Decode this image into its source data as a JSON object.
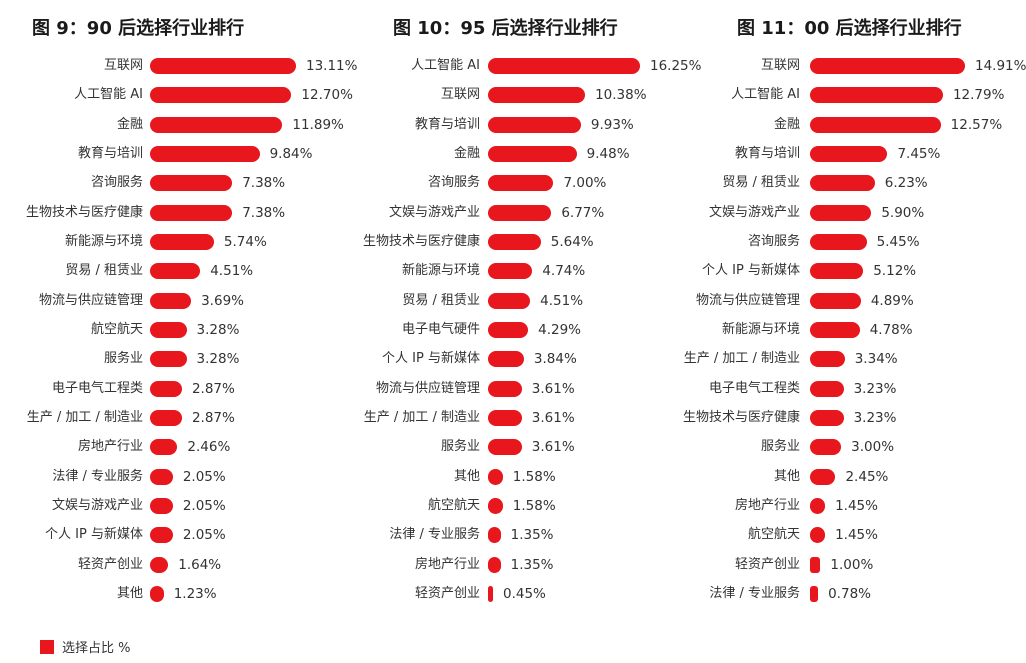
{
  "chart_data": [
    {
      "type": "bar",
      "orientation": "horizontal",
      "title": "图 9：90 后选择行业排行",
      "categories": [
        "互联网",
        "人工智能 AI",
        "金融",
        "教育与培训",
        "咨询服务",
        "生物技术与医疗健康",
        "新能源与环境",
        "贸易 / 租赁业",
        "物流与供应链管理",
        "航空航天",
        "服务业",
        "电子电气工程类",
        "生产 / 加工 / 制造业",
        "房地产行业",
        "法律 / 专业服务",
        "文娱与游戏产业",
        "个人 IP 与新媒体",
        "轻资产创业",
        "其他"
      ],
      "values": [
        13.11,
        12.7,
        11.89,
        9.84,
        7.38,
        7.38,
        5.74,
        4.51,
        3.69,
        3.28,
        3.28,
        2.87,
        2.87,
        2.46,
        2.05,
        2.05,
        2.05,
        1.64,
        1.23
      ],
      "labels": [
        "13.11%",
        "12.70%",
        "11.89%",
        "9.84%",
        "7.38%",
        "7.38%",
        "5.74%",
        "4.51%",
        "3.69%",
        "3.28%",
        "3.28%",
        "2.87%",
        "2.87%",
        "2.46%",
        "2.05%",
        "2.05%",
        "2.05%",
        "1.64%",
        "1.23%"
      ],
      "unit": "%"
    },
    {
      "type": "bar",
      "orientation": "horizontal",
      "title": "图 10：95 后选择行业排行",
      "categories": [
        "人工智能 AI",
        "互联网",
        "教育与培训",
        "金融",
        "咨询服务",
        "文娱与游戏产业",
        "生物技术与医疗健康",
        "新能源与环境",
        "贸易 / 租赁业",
        "电子电气硬件",
        "个人 IP 与新媒体",
        "物流与供应链管理",
        "生产 / 加工 / 制造业",
        "服务业",
        "其他",
        "航空航天",
        "法律 / 专业服务",
        "房地产行业",
        "轻资产创业"
      ],
      "values": [
        16.25,
        10.38,
        9.93,
        9.48,
        7.0,
        6.77,
        5.64,
        4.74,
        4.51,
        4.29,
        3.84,
        3.61,
        3.61,
        3.61,
        1.58,
        1.58,
        1.35,
        1.35,
        0.45
      ],
      "labels": [
        "16.25%",
        "10.38%",
        "9.93%",
        "9.48%",
        "7.00%",
        "6.77%",
        "5.64%",
        "4.74%",
        "4.51%",
        "4.29%",
        "3.84%",
        "3.61%",
        "3.61%",
        "3.61%",
        "1.58%",
        "1.58%",
        "1.35%",
        "1.35%",
        "0.45%"
      ],
      "unit": "%"
    },
    {
      "type": "bar",
      "orientation": "horizontal",
      "title": "图 11：00 后选择行业排行",
      "categories": [
        "互联网",
        "人工智能 AI",
        "金融",
        "教育与培训",
        "贸易 / 租赁业",
        "文娱与游戏产业",
        "咨询服务",
        "个人 IP 与新媒体",
        "物流与供应链管理",
        "新能源与环境",
        "生产 / 加工 / 制造业",
        "电子电气工程类",
        "生物技术与医疗健康",
        "服务业",
        "其他",
        "房地产行业",
        "航空航天",
        "轻资产创业",
        "法律 / 专业服务"
      ],
      "values": [
        14.91,
        12.79,
        12.57,
        7.45,
        6.23,
        5.9,
        5.45,
        5.12,
        4.89,
        4.78,
        3.34,
        3.23,
        3.23,
        3.0,
        2.45,
        1.45,
        1.45,
        1.0,
        0.78
      ],
      "labels": [
        "14.91%",
        "12.79%",
        "12.57%",
        "7.45%",
        "6.23%",
        "5.90%",
        "5.45%",
        "5.12%",
        "4.89%",
        "4.78%",
        "3.34%",
        "3.23%",
        "3.23%",
        "3.00%",
        "2.45%",
        "1.45%",
        "1.45%",
        "1.00%",
        "0.78%"
      ],
      "unit": "%"
    }
  ],
  "legend": {
    "label": "选择占比 %",
    "color": "#e8161d"
  },
  "bar_color": "#e8161d"
}
